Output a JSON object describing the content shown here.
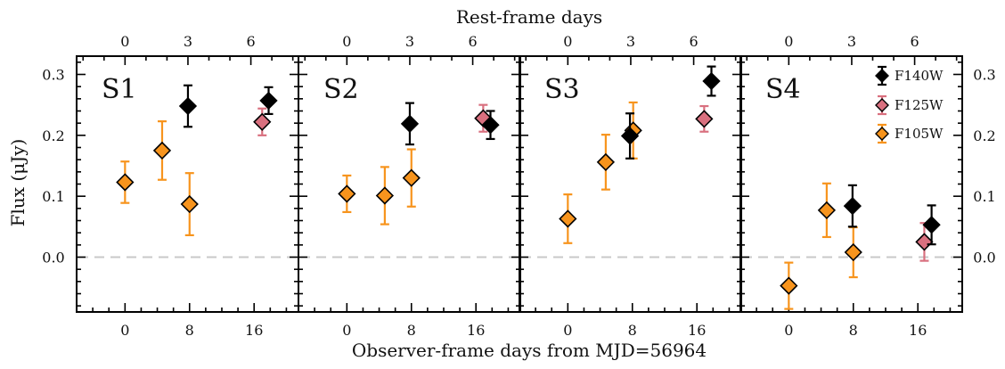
{
  "chart_data": {
    "type": "scatter",
    "ylabel": "Flux (μJy)",
    "xlabel_bottom": "Observer-frame days from MJD=56964",
    "xlabel_top": "Rest-frame days",
    "ylim": [
      -0.09,
      0.33
    ],
    "xlim": [
      -6,
      21.5
    ],
    "yticks": [
      "0.0",
      "0.1",
      "0.2",
      "0.3"
    ],
    "ytick_values": [
      0.0,
      0.1,
      0.2,
      0.3
    ],
    "xticks_bottom": [
      "0",
      "8",
      "16"
    ],
    "xtick_bottom_values": [
      0,
      8,
      16
    ],
    "xticks_top": [
      "0",
      "3",
      "6"
    ],
    "xtick_top_values": [
      0,
      7.8,
      15.6
    ],
    "grid": false,
    "reference_line_y": 0.0,
    "legend_position": "top-right of last panel",
    "legend": [
      {
        "name": "F140W",
        "color": "#000000"
      },
      {
        "name": "F125W",
        "color": "#d9707f"
      },
      {
        "name": "F105W",
        "color": "#f7941d"
      }
    ],
    "panels": [
      {
        "label": "S1",
        "series": [
          {
            "name": "F105W",
            "color": "#f7941d",
            "points": [
              {
                "x": 0.0,
                "y": 0.123,
                "err": 0.034
              },
              {
                "x": 4.6,
                "y": 0.175,
                "err": 0.048
              },
              {
                "x": 8.0,
                "y": 0.087,
                "err": 0.051
              }
            ]
          },
          {
            "name": "F125W",
            "color": "#d9707f",
            "points": [
              {
                "x": 17.0,
                "y": 0.222,
                "err": 0.022
              }
            ]
          },
          {
            "name": "F140W",
            "color": "#000000",
            "points": [
              {
                "x": 7.8,
                "y": 0.248,
                "err": 0.034
              },
              {
                "x": 17.8,
                "y": 0.257,
                "err": 0.022
              }
            ]
          }
        ]
      },
      {
        "label": "S2",
        "series": [
          {
            "name": "F105W",
            "color": "#f7941d",
            "points": [
              {
                "x": 0.0,
                "y": 0.104,
                "err": 0.03
              },
              {
                "x": 4.7,
                "y": 0.101,
                "err": 0.047
              },
              {
                "x": 8.0,
                "y": 0.13,
                "err": 0.047
              }
            ]
          },
          {
            "name": "F125W",
            "color": "#d9707f",
            "points": [
              {
                "x": 16.9,
                "y": 0.228,
                "err": 0.022
              }
            ]
          },
          {
            "name": "F140W",
            "color": "#000000",
            "points": [
              {
                "x": 7.8,
                "y": 0.219,
                "err": 0.034
              },
              {
                "x": 17.8,
                "y": 0.217,
                "err": 0.023
              }
            ]
          }
        ]
      },
      {
        "label": "S3",
        "series": [
          {
            "name": "F105W",
            "color": "#f7941d",
            "points": [
              {
                "x": 0.0,
                "y": 0.063,
                "err": 0.04
              },
              {
                "x": 4.7,
                "y": 0.156,
                "err": 0.045
              },
              {
                "x": 8.1,
                "y": 0.208,
                "err": 0.046
              }
            ]
          },
          {
            "name": "F125W",
            "color": "#d9707f",
            "points": [
              {
                "x": 16.9,
                "y": 0.227,
                "err": 0.021
              }
            ]
          },
          {
            "name": "F140W",
            "color": "#000000",
            "points": [
              {
                "x": 7.7,
                "y": 0.199,
                "err": 0.037
              },
              {
                "x": 17.8,
                "y": 0.289,
                "err": 0.024
              }
            ]
          }
        ]
      },
      {
        "label": "S4",
        "series": [
          {
            "name": "F105W",
            "color": "#f7941d",
            "points": [
              {
                "x": 0.0,
                "y": -0.047,
                "err": 0.038
              },
              {
                "x": 4.7,
                "y": 0.077,
                "err": 0.044
              },
              {
                "x": 8.0,
                "y": 0.008,
                "err": 0.041
              }
            ]
          },
          {
            "name": "F125W",
            "color": "#d9707f",
            "points": [
              {
                "x": 16.8,
                "y": 0.025,
                "err": 0.031
              }
            ]
          },
          {
            "name": "F140W",
            "color": "#000000",
            "points": [
              {
                "x": 7.9,
                "y": 0.084,
                "err": 0.034
              },
              {
                "x": 17.7,
                "y": 0.053,
                "err": 0.032
              }
            ]
          }
        ]
      }
    ]
  }
}
